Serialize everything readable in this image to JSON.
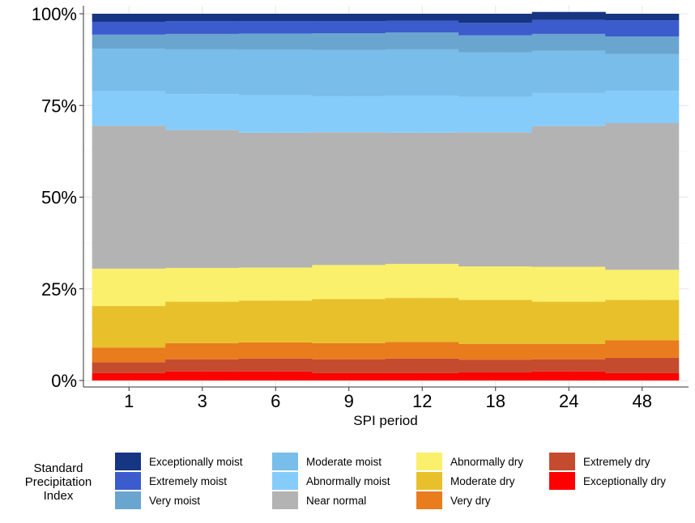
{
  "chart_data": {
    "type": "bar",
    "stacked": true,
    "xlabel": "SPI period",
    "ylabel": "",
    "categories": [
      "1",
      "3",
      "6",
      "9",
      "12",
      "18",
      "24",
      "48"
    ],
    "y_ticks": [
      "0%",
      "25%",
      "50%",
      "75%",
      "100%"
    ],
    "ylim": [
      0,
      100
    ],
    "grid": true,
    "legend": {
      "title": "Standard Precipitation Index",
      "position": "bottom"
    },
    "series": [
      {
        "name": "Exceptionally dry",
        "color": "#ff0000",
        "values": [
          2,
          2.5,
          2.5,
          2,
          2,
          2.2,
          2.5,
          2
        ]
      },
      {
        "name": "Extremely dry",
        "color": "#c54b2e",
        "values": [
          3,
          3.3,
          3.5,
          3.8,
          4,
          3.5,
          3.3,
          4.2
        ]
      },
      {
        "name": "Very dry",
        "color": "#e97c1d",
        "values": [
          4,
          4.4,
          4.4,
          4.4,
          4.5,
          4.3,
          4.2,
          4.8
        ]
      },
      {
        "name": "Moderate dry",
        "color": "#e8c02b",
        "values": [
          11.3,
          11.3,
          11.4,
          12,
          12,
          12,
          11.5,
          11
        ]
      },
      {
        "name": "Abnormally dry",
        "color": "#faf06b",
        "values": [
          10.2,
          9.2,
          9,
          9.3,
          9.3,
          9.1,
          9.5,
          8.2
        ]
      },
      {
        "name": "Near normal",
        "color": "#b3b3b3",
        "values": [
          39,
          37.6,
          36.8,
          36.2,
          35.8,
          36.6,
          38.4,
          40
        ]
      },
      {
        "name": "Abnormally moist",
        "color": "#85ccfb",
        "values": [
          9.4,
          9.8,
          10.2,
          9.8,
          10.1,
          9.6,
          9,
          8.8
        ]
      },
      {
        "name": "Moderate moist",
        "color": "#79bdea",
        "values": [
          11.6,
          12.2,
          12.4,
          12.6,
          12.6,
          12.2,
          11.5,
          10
        ]
      },
      {
        "name": "Very moist",
        "color": "#6aa5cf",
        "values": [
          3.8,
          4.2,
          4.4,
          4.6,
          4.6,
          4.6,
          4.6,
          4.8
        ]
      },
      {
        "name": "Extremely moist",
        "color": "#3c5ccd",
        "values": [
          3.5,
          3.5,
          3.4,
          3.3,
          3.2,
          3.4,
          3.8,
          4.4
        ]
      },
      {
        "name": "Exceptionally moist",
        "color": "#163582",
        "values": [
          2.2,
          2,
          2,
          2,
          1.9,
          2.5,
          2.2,
          1.8
        ]
      }
    ],
    "legend_order": [
      "Exceptionally moist",
      "Extremely moist",
      "Very moist",
      "Moderate moist",
      "Abnormally moist",
      "Near normal",
      "Abnormally dry",
      "Moderate dry",
      "Very dry",
      "Extremely dry",
      "Exceptionally dry"
    ]
  }
}
